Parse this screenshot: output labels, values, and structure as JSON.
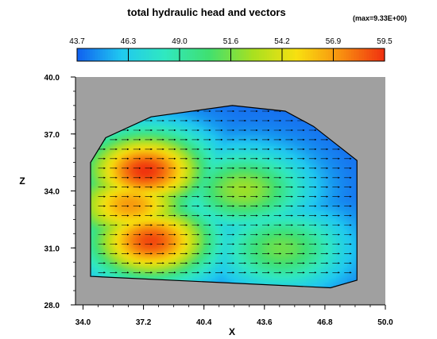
{
  "chart_data": {
    "type": "heatmap",
    "title": "total hydraulic head and vectors",
    "max_label": "(max=9.33E+00)",
    "xlabel": "X",
    "ylabel": "Z",
    "xlim": [
      33.6,
      50.0
    ],
    "ylim": [
      28.0,
      40.0
    ],
    "x_ticks": [
      "34.0",
      "37.2",
      "40.4",
      "43.6",
      "46.8",
      "50.0"
    ],
    "y_ticks": [
      "28.0",
      "31.0",
      "34.0",
      "37.0",
      "40.0"
    ],
    "colorbar": {
      "min": 43.7,
      "max": 59.5,
      "tick_labels": [
        "43.7",
        "46.3",
        "49.0",
        "51.6",
        "54.2",
        "56.9",
        "59.5"
      ],
      "colors": [
        "#1060f0",
        "#20c8f0",
        "#30e8c0",
        "#40e070",
        "#a8e020",
        "#f8e010",
        "#f89010",
        "#f03010"
      ]
    },
    "background_color": "#a0a0a0",
    "domain_outline": [
      [
        34.4,
        29.5
      ],
      [
        34.4,
        35.5
      ],
      [
        35.2,
        36.8
      ],
      [
        37.6,
        37.9
      ],
      [
        41.9,
        38.5
      ],
      [
        44.7,
        38.2
      ],
      [
        46.2,
        37.4
      ],
      [
        48.5,
        35.6
      ],
      [
        48.5,
        29.3
      ],
      [
        47.1,
        28.9
      ],
      [
        34.4,
        29.5
      ]
    ],
    "hot_spots": [
      {
        "x": 37.3,
        "z": 35.1,
        "value": 59.5
      },
      {
        "x": 37.6,
        "z": 31.4,
        "value": 59.0
      },
      {
        "x": 36.5,
        "z": 33.3,
        "value": 57.0
      },
      {
        "x": 42.5,
        "z": 34.1,
        "value": 52.5
      },
      {
        "x": 44.5,
        "z": 31.0,
        "value": 51.5
      }
    ],
    "edge_value": 44.0,
    "vector_direction": "+X"
  }
}
